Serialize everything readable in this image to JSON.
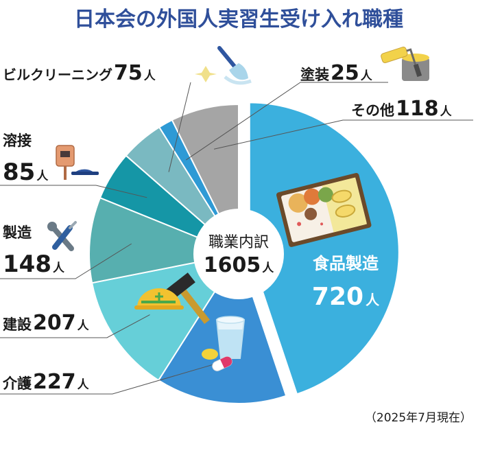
{
  "chart_data": {
    "type": "pie",
    "title": "日本会の外国人実習生受け入れ職種",
    "center_label": "職業内訳",
    "total": 1605,
    "unit": "人",
    "note": "（2025年7月現在）",
    "categories": [
      "食品製造",
      "介護",
      "建設",
      "製造",
      "溶接",
      "ビルクリーニング",
      "塗装",
      "その他"
    ],
    "values": [
      720,
      227,
      207,
      148,
      85,
      75,
      25,
      118
    ],
    "colors": [
      "#3bb0de",
      "#3a8fd4",
      "#66cfd8",
      "#57afaf",
      "#1596a6",
      "#7ab9c1",
      "#2e9ad5",
      "#a5a5a5"
    ]
  }
}
